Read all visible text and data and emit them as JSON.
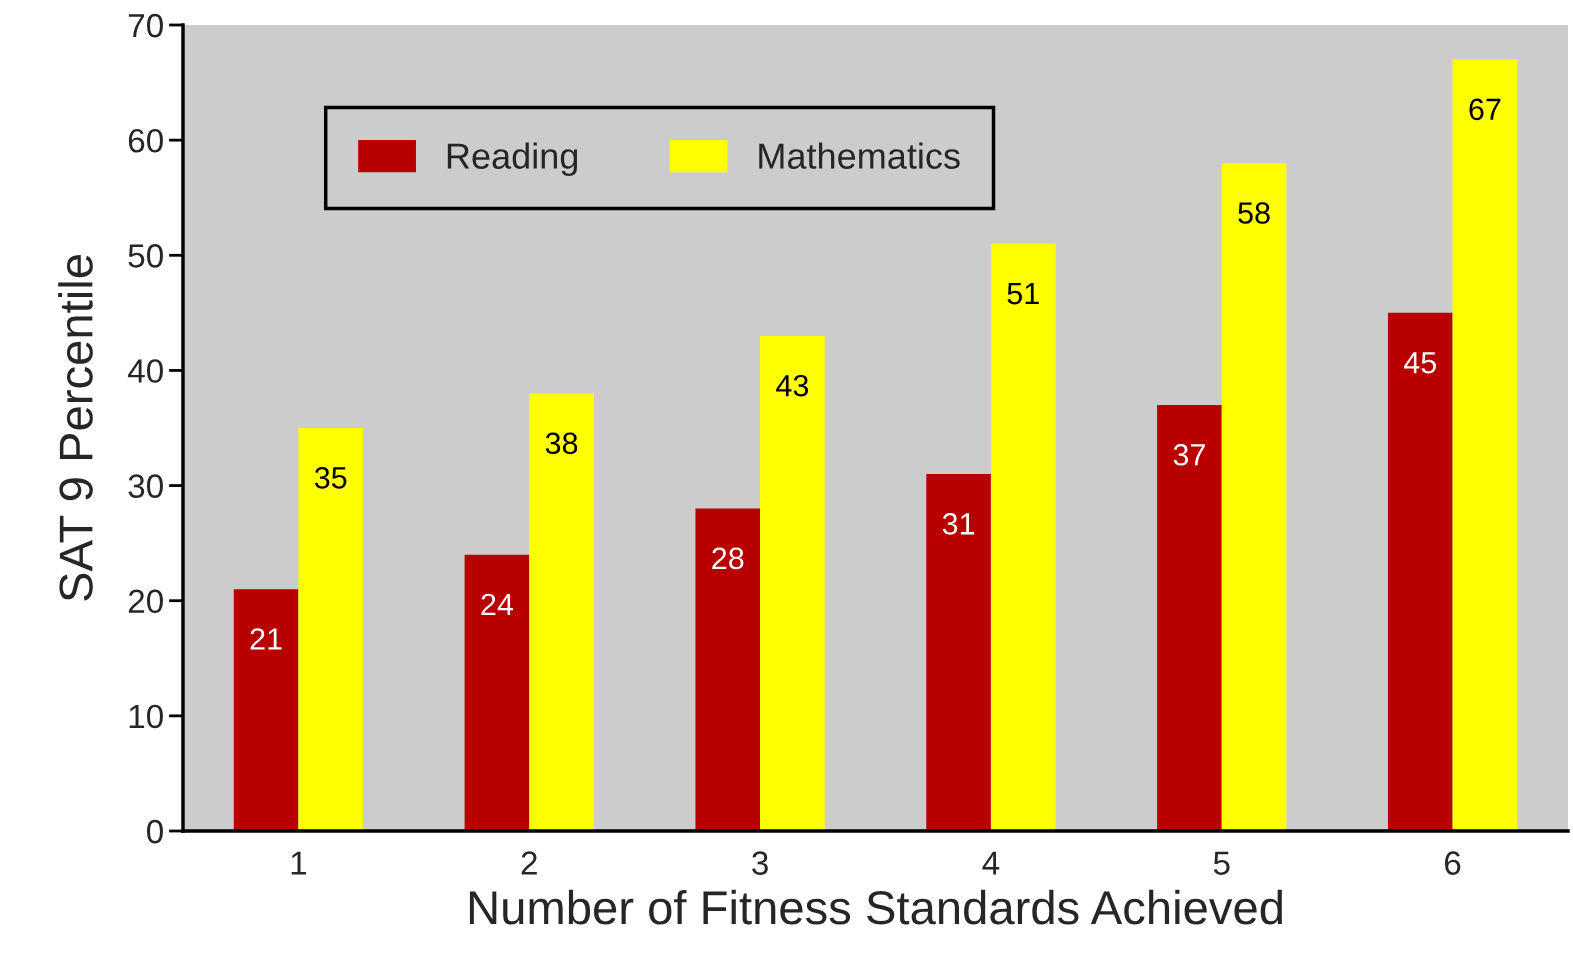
{
  "chart_data": {
    "type": "bar",
    "xlabel": "Number of Fitness Standards Achieved",
    "ylabel": "SAT 9 Percentile",
    "categories": [
      "1",
      "2",
      "3",
      "4",
      "5",
      "6"
    ],
    "series": [
      {
        "name": "Reading",
        "color": "#b80000",
        "values": [
          21,
          24,
          28,
          31,
          37,
          45
        ]
      },
      {
        "name": "Mathematics",
        "color": "#ffff00",
        "values": [
          35,
          38,
          43,
          51,
          58,
          67
        ]
      }
    ],
    "ylim": [
      0,
      70
    ],
    "yticks": [
      0,
      10,
      20,
      30,
      40,
      50,
      60,
      70
    ],
    "data_labels": true,
    "legend": "top left"
  }
}
